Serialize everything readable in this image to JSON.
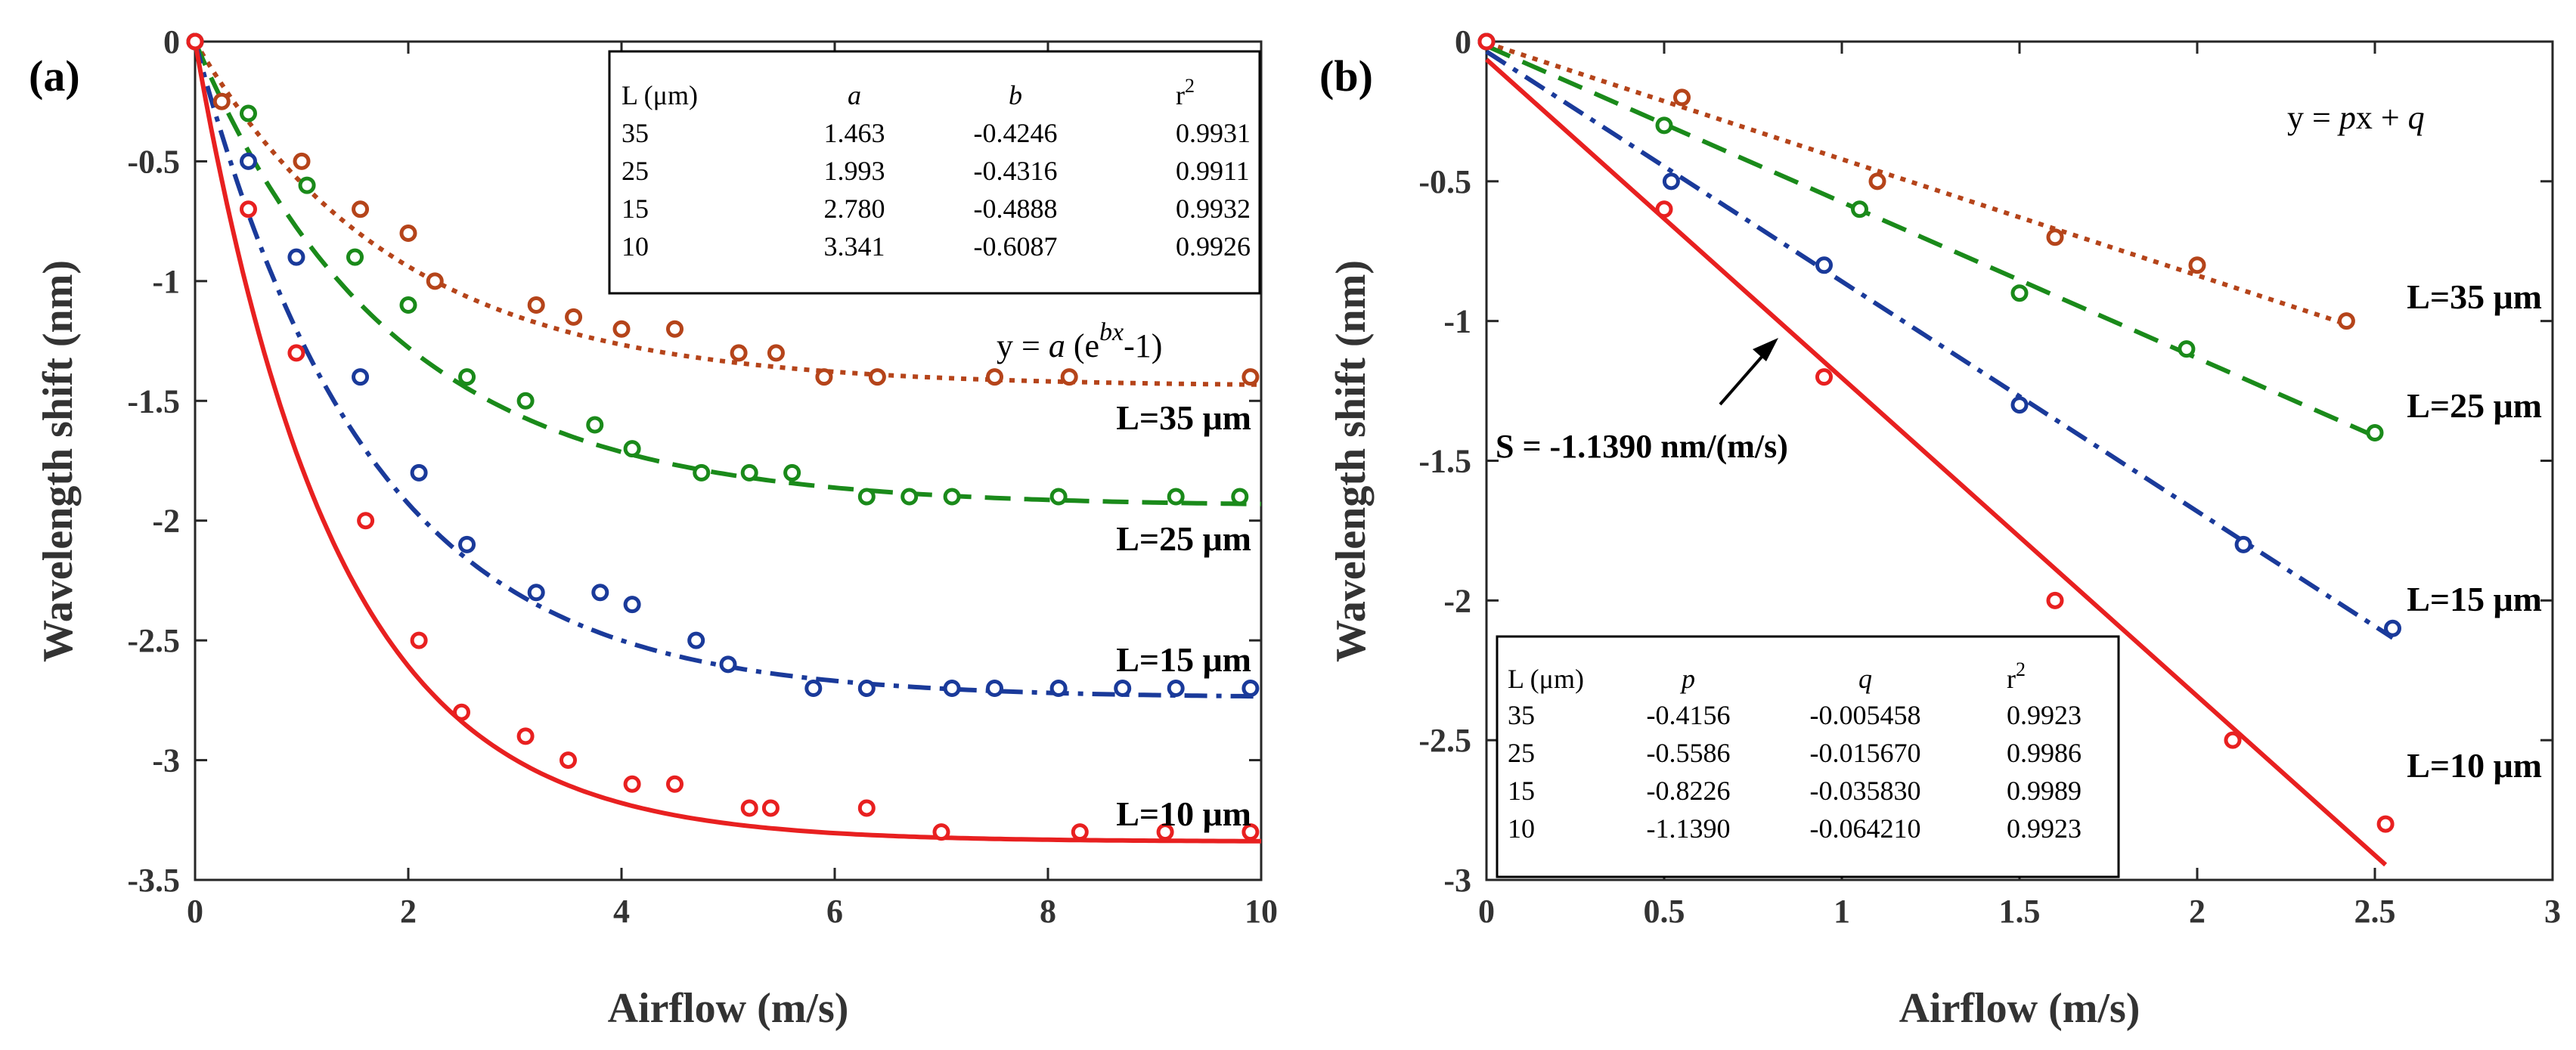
{
  "chart_data": [
    {
      "type": "line",
      "panel_label": "(a)",
      "xlabel": "Airflow (m/s)",
      "ylabel": "Wavelength shift (nm)",
      "xlim": [
        0,
        10
      ],
      "ylim": [
        -3.5,
        0
      ],
      "xticks": [
        "0",
        "2",
        "4",
        "6",
        "8",
        "10"
      ],
      "yticks": [
        "0",
        "-0.5",
        "-1",
        "-1.5",
        "-2",
        "-2.5",
        "-3",
        "-3.5"
      ],
      "equation": "y = a (e^bx -1)",
      "equation_parts": {
        "prefix": "y = ",
        "a": "a",
        "open": " (e",
        "sup": "bx",
        "suffix": "-1)"
      },
      "fit_table": {
        "headers": [
          "L (μm)",
          "a",
          "b",
          "r"
        ],
        "header_sup": "2",
        "rows": [
          [
            "35",
            "1.463",
            "-0.4246",
            "0.9931"
          ],
          [
            "25",
            "1.993",
            "-0.4316",
            "0.9911"
          ],
          [
            "15",
            "2.780",
            "-0.4888",
            "0.9932"
          ],
          [
            "10",
            "3.341",
            "-0.6087",
            "0.9926"
          ]
        ]
      },
      "series": [
        {
          "name": "L=35 μm",
          "label": "L=35 μm",
          "color": "#B5441A",
          "dash": "dotted",
          "fit": {
            "a": 1.463,
            "b": -0.4246
          },
          "x": [
            0,
            0.25,
            1,
            1.55,
            2,
            2.25,
            3.2,
            3.55,
            4.0,
            4.5,
            5.1,
            5.45,
            5.9,
            6.4,
            7.5,
            8.2,
            9.9
          ],
          "y": [
            0,
            -0.25,
            -0.5,
            -0.7,
            -0.8,
            -1.0,
            -1.1,
            -1.15,
            -1.2,
            -1.2,
            -1.3,
            -1.3,
            -1.4,
            -1.4,
            -1.4,
            -1.4,
            -1.4
          ]
        },
        {
          "name": "L=25 μm",
          "label": "L=25 μm",
          "color": "#1A8A1A",
          "dash": "dashed",
          "fit": {
            "a": 1.993,
            "b": -0.4316
          },
          "x": [
            0,
            0.5,
            1.05,
            1.5,
            2.0,
            2.55,
            3.1,
            3.75,
            4.1,
            4.75,
            5.2,
            5.6,
            6.3,
            6.7,
            7.1,
            8.1,
            9.2,
            9.8
          ],
          "y": [
            0,
            -0.3,
            -0.6,
            -0.9,
            -1.1,
            -1.4,
            -1.5,
            -1.6,
            -1.7,
            -1.8,
            -1.8,
            -1.8,
            -1.9,
            -1.9,
            -1.9,
            -1.9,
            -1.9,
            -1.9
          ]
        },
        {
          "name": "L=15 μm",
          "label": "L=15 μm",
          "color": "#1A3A9A",
          "dash": "dashdot",
          "fit": {
            "a": 2.78,
            "b": -0.4888
          },
          "x": [
            0,
            0.5,
            0.95,
            1.55,
            2.1,
            2.55,
            3.2,
            3.8,
            4.1,
            4.7,
            5.0,
            5.8,
            6.3,
            7.1,
            7.5,
            8.1,
            8.7,
            9.2,
            9.9
          ],
          "y": [
            0,
            -0.5,
            -0.9,
            -1.4,
            -1.8,
            -2.1,
            -2.3,
            -2.3,
            -2.35,
            -2.5,
            -2.6,
            -2.7,
            -2.7,
            -2.7,
            -2.7,
            -2.7,
            -2.7,
            -2.7,
            -2.7
          ]
        },
        {
          "name": "L=10 μm",
          "label": "L=10 μm",
          "color": "#E82020",
          "dash": "solid",
          "fit": {
            "a": 3.341,
            "b": -0.6087
          },
          "x": [
            0,
            0.5,
            0.95,
            1.6,
            2.1,
            2.5,
            3.1,
            3.5,
            4.1,
            4.5,
            5.2,
            5.4,
            6.3,
            7.0,
            8.3,
            9.1,
            9.9
          ],
          "y": [
            0,
            -0.7,
            -1.3,
            -2.0,
            -2.5,
            -2.8,
            -2.9,
            -3.0,
            -3.1,
            -3.1,
            -3.2,
            -3.2,
            -3.2,
            -3.3,
            -3.3,
            -3.3,
            -3.3
          ]
        }
      ]
    },
    {
      "type": "line",
      "panel_label": "(b)",
      "xlabel": "Airflow (m/s)",
      "ylabel": "Wavelength shift (nm)",
      "xlim": [
        0,
        3
      ],
      "ylim": [
        -3,
        0
      ],
      "xticks": [
        "0",
        "0.5",
        "1",
        "1.5",
        "2",
        "2.5",
        "3"
      ],
      "yticks": [
        "0",
        "-0.5",
        "-1",
        "-1.5",
        "-2",
        "-2.5",
        "-3"
      ],
      "equation": "y = px + q",
      "equation_parts": {
        "prefix": "y = ",
        "p": "p",
        "mid": "x + ",
        "q": "q"
      },
      "annotation": "S = -1.1390 nm/(m/s)",
      "fit_table": {
        "headers": [
          "L (μm)",
          "p",
          "q",
          "r"
        ],
        "header_sup": "2",
        "rows": [
          [
            "35",
            "-0.4156",
            "-0.005458",
            "0.9923"
          ],
          [
            "25",
            "-0.5586",
            "-0.015670",
            "0.9986"
          ],
          [
            "15",
            "-0.8226",
            "-0.035830",
            "0.9989"
          ],
          [
            "10",
            "-1.1390",
            "-0.064210",
            "0.9923"
          ]
        ]
      },
      "series": [
        {
          "name": "L=35 μm",
          "label": "L=35 μm",
          "color": "#B5441A",
          "dash": "dotted",
          "fit": {
            "p": -0.4156,
            "q": -0.005458,
            "x_end": 2.42
          },
          "x": [
            0,
            0.55,
            1.1,
            1.6,
            2.0,
            2.42
          ],
          "y": [
            0,
            -0.2,
            -0.5,
            -0.7,
            -0.8,
            -1.0
          ]
        },
        {
          "name": "L=25 μm",
          "label": "L=25 μm",
          "color": "#1A8A1A",
          "dash": "dashed",
          "fit": {
            "p": -0.5586,
            "q": -0.01567,
            "x_end": 2.5
          },
          "x": [
            0,
            0.5,
            1.05,
            1.5,
            1.97,
            2.5
          ],
          "y": [
            0,
            -0.3,
            -0.6,
            -0.9,
            -1.1,
            -1.4
          ]
        },
        {
          "name": "L=15 μm",
          "label": "L=15 μm",
          "color": "#1A3A9A",
          "dash": "dashdot",
          "fit": {
            "p": -0.8226,
            "q": -0.03583,
            "x_end": 2.55
          },
          "x": [
            0,
            0.52,
            0.95,
            1.5,
            2.13,
            2.55
          ],
          "y": [
            0,
            -0.5,
            -0.8,
            -1.3,
            -1.8,
            -2.1
          ]
        },
        {
          "name": "L=10 μm",
          "label": "L=10 μm",
          "color": "#E82020",
          "dash": "solid",
          "fit": {
            "p": -1.139,
            "q": -0.06421,
            "x_end": 2.53
          },
          "x": [
            0,
            0.5,
            0.95,
            1.6,
            2.1,
            2.53
          ],
          "y": [
            0,
            -0.6,
            -1.2,
            -2.0,
            -2.5,
            -2.8
          ]
        }
      ]
    }
  ]
}
